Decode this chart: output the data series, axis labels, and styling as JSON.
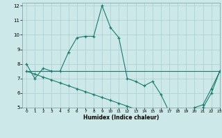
{
  "title": "",
  "xlabel": "Humidex (Indice chaleur)",
  "bg_color": "#cce8e8",
  "line_color": "#1a7a6e",
  "grid_color": "#aacece",
  "xlim": [
    -0.5,
    23
  ],
  "ylim": [
    5,
    12.2
  ],
  "xticks": [
    0,
    1,
    2,
    3,
    4,
    5,
    6,
    7,
    8,
    9,
    10,
    11,
    12,
    13,
    14,
    15,
    16,
    17,
    18,
    19,
    20,
    21,
    22,
    23
  ],
  "yticks": [
    5,
    6,
    7,
    8,
    9,
    10,
    11,
    12
  ],
  "series1_x": [
    0,
    1,
    2,
    3,
    4,
    5,
    6,
    7,
    8,
    9,
    10,
    11,
    12,
    13,
    14,
    15,
    16,
    17,
    18,
    19,
    20,
    21,
    22,
    23
  ],
  "series1_y": [
    8.0,
    7.0,
    7.7,
    7.5,
    7.5,
    8.8,
    9.8,
    9.9,
    9.9,
    12.0,
    10.5,
    9.8,
    7.0,
    6.8,
    6.5,
    6.8,
    5.9,
    4.7,
    4.6,
    4.8,
    5.0,
    5.2,
    6.3,
    7.5
  ],
  "series2_x": [
    0,
    23
  ],
  "series2_y": [
    7.5,
    7.5
  ],
  "series3_x": [
    0,
    1,
    2,
    3,
    4,
    5,
    6,
    7,
    8,
    9,
    10,
    11,
    12,
    13,
    14,
    15,
    16,
    17,
    18,
    19,
    20,
    21,
    22,
    23
  ],
  "series3_y": [
    7.5,
    7.3,
    7.1,
    6.9,
    6.7,
    6.5,
    6.3,
    6.1,
    5.9,
    5.7,
    5.5,
    5.3,
    5.1,
    4.9,
    4.8,
    4.8,
    4.7,
    4.65,
    4.6,
    4.65,
    4.7,
    5.0,
    6.0,
    7.5
  ]
}
